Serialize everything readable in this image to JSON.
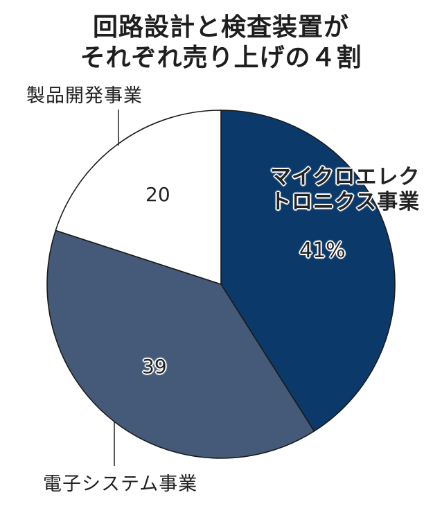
{
  "title": {
    "line1": "回路設計と検査装置が",
    "line2": "それぞれ売り上げの４割"
  },
  "labels": {
    "micro_line1": "マイクロエレク",
    "micro_line2": "トロニクス事業",
    "micro_value": "41%",
    "product": "製品開発事業",
    "product_value": "20",
    "electronic": "電子システム事業",
    "electronic_value": "39"
  },
  "colors": {
    "micro": "#0b3a6a",
    "electronic": "#455a78",
    "product": "#ffffff",
    "outline": "#1a1a1a"
  },
  "chart_data": {
    "type": "pie",
    "title": "回路設計と検査装置がそれぞれ売り上げの４割",
    "unit": "%",
    "categories": [
      "マイクロエレクトロニクス事業",
      "電子システム事業",
      "製品開発事業"
    ],
    "values": [
      41,
      39,
      20
    ],
    "data_labels": [
      "41%",
      "39",
      "20"
    ],
    "start_angle": "12 o'clock, clockwise",
    "legend": "none (direct labels, leader lines for outside labels)"
  }
}
